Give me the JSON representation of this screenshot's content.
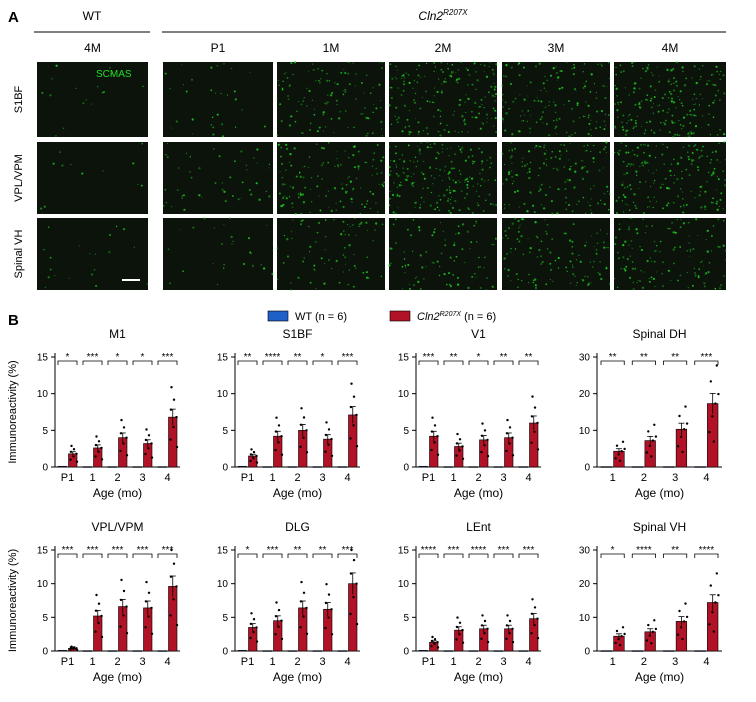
{
  "panelA": {
    "label": "A",
    "wt_header": "WT",
    "mut_header": "Cln2",
    "mut_sup": "R207X",
    "wt_cols": [
      "4M"
    ],
    "mut_cols": [
      "P1",
      "1M",
      "2M",
      "3M",
      "4M"
    ],
    "rows": [
      "S1BF",
      "VPL/VPM",
      "Spinal VH"
    ],
    "stain_label": "SCMAS",
    "stain_color": "#22dd22",
    "intensity": [
      [
        0.06,
        0.12,
        0.45,
        0.7,
        0.55,
        0.8
      ],
      [
        0.05,
        0.18,
        0.5,
        0.75,
        0.55,
        0.7
      ],
      [
        0.08,
        0.1,
        0.3,
        0.35,
        0.45,
        0.5
      ]
    ]
  },
  "panelB": {
    "label": "B",
    "legend": [
      {
        "text": "WT (n = 6)",
        "color": "#1f5fc8"
      },
      {
        "text": "Cln2",
        "sup": "R207X",
        "suffix": " (n = 6)",
        "color": "#b11226"
      }
    ],
    "ylabel": "Immunoreactivity (%)",
    "xlabel": "Age (mo)",
    "wt_color": "#1f5fc8",
    "mut_color": "#b11226"
  },
  "chart_data": [
    {
      "type": "bar",
      "title": "M1",
      "categories": [
        "P1",
        "1",
        "2",
        "3",
        "4"
      ],
      "ylim": [
        0,
        15
      ],
      "yticks": [
        0,
        5,
        10,
        15
      ],
      "series": [
        {
          "name": "WT (n = 6)",
          "values": [
            0.1,
            0.05,
            0.05,
            0.05,
            0.05
          ]
        },
        {
          "name": "Cln2R207X (n = 6)",
          "values": [
            1.8,
            2.6,
            4.0,
            3.2,
            6.8
          ]
        }
      ],
      "sig": [
        "*",
        "***",
        "*",
        "*",
        "***"
      ]
    },
    {
      "type": "bar",
      "title": "S1BF",
      "categories": [
        "P1",
        "1",
        "2",
        "3",
        "4"
      ],
      "ylim": [
        0,
        15
      ],
      "yticks": [
        0,
        5,
        10,
        15
      ],
      "series": [
        {
          "name": "WT (n = 6)",
          "values": [
            0.1,
            0.05,
            0.05,
            0.05,
            0.05
          ]
        },
        {
          "name": "Cln2R207X (n = 6)",
          "values": [
            1.5,
            4.2,
            5.0,
            3.8,
            7.1
          ]
        }
      ],
      "sig": [
        "**",
        "****",
        "**",
        "*",
        "***"
      ]
    },
    {
      "type": "bar",
      "title": "V1",
      "categories": [
        "P1",
        "1",
        "2",
        "3",
        "4"
      ],
      "ylim": [
        0,
        15
      ],
      "yticks": [
        0,
        5,
        10,
        15
      ],
      "series": [
        {
          "name": "WT (n = 6)",
          "values": [
            0.1,
            0.05,
            0.05,
            0.05,
            0.05
          ]
        },
        {
          "name": "Cln2R207X (n = 6)",
          "values": [
            4.2,
            2.8,
            3.7,
            4.0,
            6.0
          ]
        }
      ],
      "sig": [
        "***",
        "**",
        "*",
        "**",
        "**"
      ]
    },
    {
      "type": "bar",
      "title": "Spinal DH",
      "categories": [
        "1",
        "2",
        "3",
        "4"
      ],
      "ylim": [
        0,
        30
      ],
      "yticks": [
        0,
        10,
        20,
        30
      ],
      "series": [
        {
          "name": "WT (n = 6)",
          "values": [
            0.1,
            0.1,
            0.1,
            0.1
          ]
        },
        {
          "name": "Cln2R207X (n = 6)",
          "values": [
            4.3,
            7.2,
            10.3,
            17.3
          ]
        }
      ],
      "sig": [
        "**",
        "**",
        "**",
        "***"
      ]
    },
    {
      "type": "bar",
      "title": "VPL/VPM",
      "categories": [
        "P1",
        "1",
        "2",
        "3",
        "4"
      ],
      "ylim": [
        0,
        15
      ],
      "yticks": [
        0,
        5,
        10,
        15
      ],
      "series": [
        {
          "name": "WT (n = 6)",
          "values": [
            0.1,
            0.05,
            0.05,
            0.05,
            0.05
          ]
        },
        {
          "name": "Cln2R207X (n = 6)",
          "values": [
            0.4,
            5.2,
            6.6,
            6.4,
            9.6
          ]
        }
      ],
      "sig": [
        "***",
        "***",
        "***",
        "***",
        "***"
      ]
    },
    {
      "type": "bar",
      "title": "DLG",
      "categories": [
        "P1",
        "1",
        "2",
        "3",
        "4"
      ],
      "ylim": [
        0,
        15
      ],
      "yticks": [
        0,
        5,
        10,
        15
      ],
      "series": [
        {
          "name": "WT (n = 6)",
          "values": [
            0.1,
            0.05,
            0.05,
            0.05,
            0.05
          ]
        },
        {
          "name": "Cln2R207X (n = 6)",
          "values": [
            3.5,
            4.5,
            6.4,
            6.2,
            10.0
          ]
        }
      ],
      "sig": [
        "*",
        "***",
        "**",
        "**",
        "***"
      ]
    },
    {
      "type": "bar",
      "title": "LEnt",
      "categories": [
        "P1",
        "1",
        "2",
        "3",
        "4"
      ],
      "ylim": [
        0,
        15
      ],
      "yticks": [
        0,
        5,
        10,
        15
      ],
      "series": [
        {
          "name": "WT (n = 6)",
          "values": [
            0.1,
            0.05,
            0.05,
            0.05,
            0.05
          ]
        },
        {
          "name": "Cln2R207X (n = 6)",
          "values": [
            1.3,
            3.1,
            3.3,
            3.3,
            4.8
          ]
        }
      ],
      "sig": [
        "****",
        "***",
        "****",
        "***",
        "***"
      ]
    },
    {
      "type": "bar",
      "title": "Spinal VH",
      "categories": [
        "1",
        "2",
        "3",
        "4"
      ],
      "ylim": [
        0,
        30
      ],
      "yticks": [
        0,
        10,
        20,
        30
      ],
      "series": [
        {
          "name": "WT (n = 6)",
          "values": [
            0.1,
            0.1,
            0.1,
            0.1
          ]
        },
        {
          "name": "Cln2R207X (n = 6)",
          "values": [
            4.4,
            5.7,
            8.8,
            14.4
          ]
        }
      ],
      "sig": [
        "*",
        "****",
        "**",
        "****"
      ]
    }
  ]
}
